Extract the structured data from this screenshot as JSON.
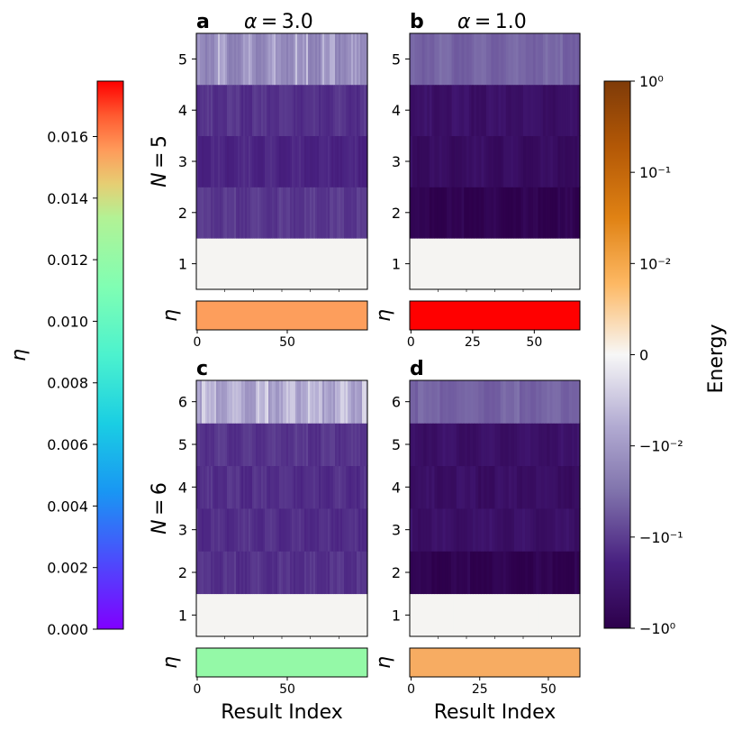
{
  "chart_data": {
    "type": "heatmap",
    "panels": [
      {
        "letter": "a",
        "title": "α = 3.0",
        "row_label": "N = 5",
        "levels": [
          "1",
          "2",
          "3",
          "4",
          "5"
        ],
        "energies": [
          0.0,
          -0.13,
          -0.2,
          -0.15,
          -0.02
        ],
        "n_results": 95,
        "x_ticks": [
          "0",
          "50"
        ],
        "x_tick_values": [
          0,
          50
        ],
        "eta_value": 0.0155,
        "eta_label": "η",
        "xlabel": ""
      },
      {
        "letter": "b",
        "title": "α = 1.0",
        "row_label": "",
        "levels": [
          "1",
          "2",
          "3",
          "4",
          "5"
        ],
        "energies": [
          0.0,
          -1.0,
          -0.6,
          -0.5,
          -0.05
        ],
        "n_results": 69,
        "x_ticks": [
          "0",
          "25",
          "50"
        ],
        "x_tick_values": [
          0,
          25,
          50
        ],
        "eta_value": 0.0178,
        "eta_label": "η",
        "xlabel": ""
      },
      {
        "letter": "c",
        "title": "",
        "row_label": "N = 6",
        "levels": [
          "1",
          "2",
          "3",
          "4",
          "5",
          "6"
        ],
        "energies": [
          0.0,
          -0.15,
          -0.16,
          -0.16,
          -0.14,
          -0.01
        ],
        "n_results": 95,
        "x_ticks": [
          "0",
          "50"
        ],
        "x_tick_values": [
          0,
          50
        ],
        "eta_value": 0.012,
        "eta_label": "η",
        "xlabel": "Result Index"
      },
      {
        "letter": "d",
        "title": "",
        "row_label": "",
        "levels": [
          "1",
          "2",
          "3",
          "4",
          "5",
          "6"
        ],
        "energies": [
          0.0,
          -1.0,
          -0.5,
          -0.55,
          -0.5,
          -0.05
        ],
        "n_results": 62,
        "x_ticks": [
          "0",
          "25",
          "50"
        ],
        "x_tick_values": [
          0,
          25,
          50
        ],
        "eta_value": 0.0152,
        "eta_label": "η",
        "xlabel": "Result Index"
      }
    ],
    "eta_colorbar": {
      "label": "η",
      "min": 0.0,
      "max": 0.0178,
      "ticks": [
        "0.000",
        "0.002",
        "0.004",
        "0.006",
        "0.008",
        "0.010",
        "0.012",
        "0.014",
        "0.016"
      ],
      "tick_values": [
        0,
        0.002,
        0.004,
        0.006,
        0.008,
        0.01,
        0.012,
        0.014,
        0.016
      ]
    },
    "energy_colorbar": {
      "label": "Energy",
      "scale": "symlog",
      "ticks": [
        "10⁰",
        "10⁻¹",
        "10⁻²",
        "0",
        "−10⁻²",
        "−10⁻¹",
        "−10⁰"
      ],
      "tick_values": [
        1,
        0.1,
        0.01,
        0,
        -0.01,
        -0.1,
        -1
      ]
    }
  }
}
